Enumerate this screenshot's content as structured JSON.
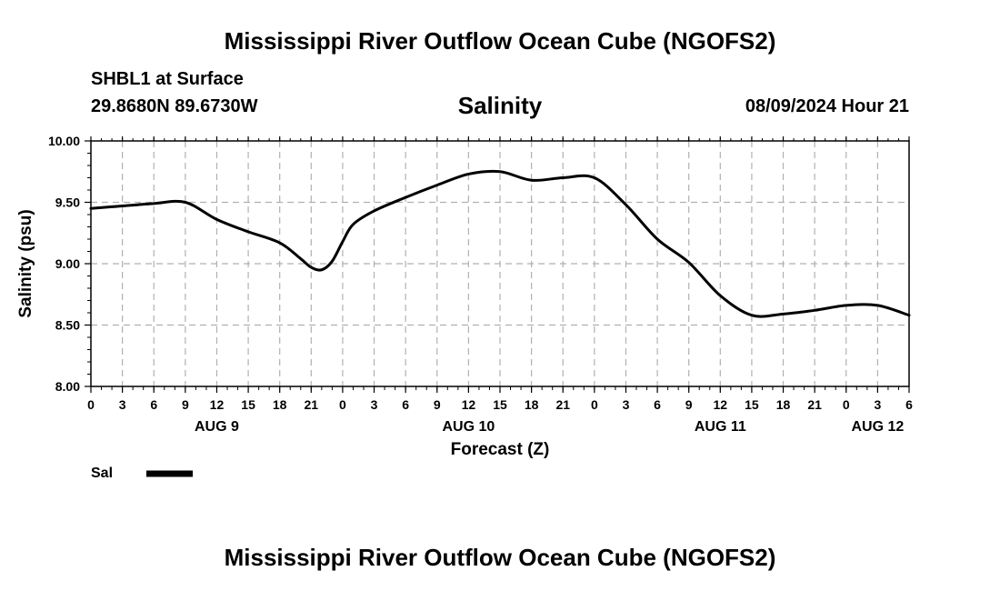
{
  "header": {
    "title": "Mississippi River Outflow Ocean Cube (NGOFS2)",
    "station": "SHBL1 at Surface",
    "coordinates": "29.8680N  89.6730W",
    "variable": "Salinity",
    "datetime": "08/09/2024 Hour 21"
  },
  "footer": {
    "title": "Mississippi River Outflow Ocean Cube (NGOFS2)"
  },
  "colors": {
    "line": "#000000",
    "grid": "#b0b0b0"
  },
  "chart_data": {
    "type": "line",
    "title": "Salinity",
    "xlabel": "Forecast (Z)",
    "ylabel": "Salinity (psu)",
    "xlim": [
      0,
      78
    ],
    "ylim": [
      8.0,
      10.0
    ],
    "grid": true,
    "y_ticks": [
      "8.00",
      "8.50",
      "9.00",
      "9.50",
      "10.00"
    ],
    "x_ticks": [
      "0",
      "3",
      "6",
      "9",
      "12",
      "15",
      "18",
      "21",
      "0",
      "3",
      "6",
      "9",
      "12",
      "15",
      "18",
      "21",
      "0",
      "3",
      "6",
      "9",
      "12",
      "15",
      "18",
      "21",
      "0",
      "3",
      "6"
    ],
    "day_labels": [
      {
        "label": "AUG 9",
        "hour": 12
      },
      {
        "label": "AUG 10",
        "hour": 36
      },
      {
        "label": "AUG 11",
        "hour": 60
      },
      {
        "label": "AUG 12",
        "hour": 75
      }
    ],
    "legend": {
      "label": "Sal",
      "position": "bottom-left"
    },
    "series": [
      {
        "name": "Sal",
        "x": [
          0,
          3,
          6,
          9,
          12,
          15,
          18,
          20,
          21,
          22,
          23,
          24,
          25,
          27,
          30,
          33,
          36,
          39,
          42,
          45,
          48,
          51,
          54,
          57,
          60,
          63,
          66,
          69,
          72,
          75,
          78
        ],
        "values": [
          9.45,
          9.47,
          9.49,
          9.5,
          9.36,
          9.26,
          9.17,
          9.04,
          8.97,
          8.95,
          9.02,
          9.18,
          9.32,
          9.43,
          9.54,
          9.64,
          9.73,
          9.75,
          9.68,
          9.7,
          9.7,
          9.48,
          9.2,
          9.01,
          8.74,
          8.58,
          8.59,
          8.62,
          8.66,
          8.66,
          8.58
        ]
      }
    ]
  }
}
